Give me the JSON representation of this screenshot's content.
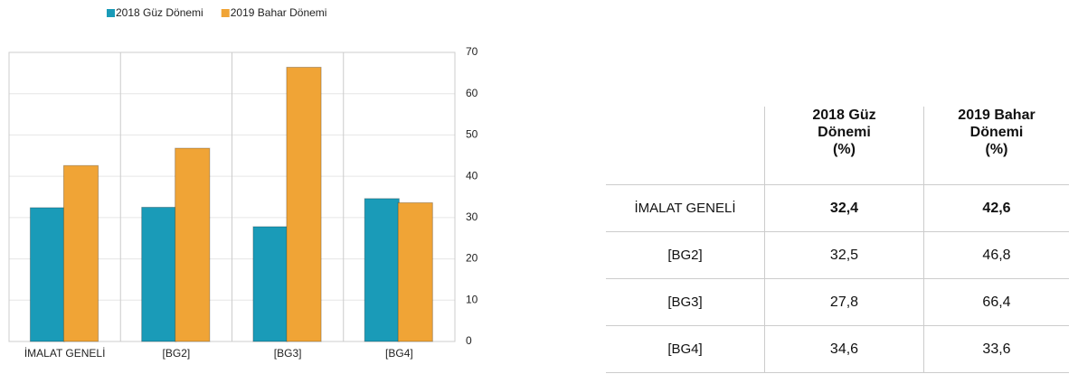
{
  "chart_data": {
    "type": "bar",
    "categories": [
      "İMALAT GENELİ",
      "[BG2]",
      "[BG3]",
      "[BG4]"
    ],
    "series": [
      {
        "name": "2018 Güz Dönemi",
        "color": "#1a9bb8",
        "values": [
          32.4,
          32.5,
          27.8,
          34.6
        ]
      },
      {
        "name": "2019 Bahar Dönemi",
        "color": "#f0a436",
        "values": [
          42.6,
          46.8,
          66.4,
          33.6
        ]
      }
    ],
    "ylim": [
      0,
      70
    ],
    "yticks": [
      0,
      10,
      20,
      30,
      40,
      50,
      60,
      70
    ],
    "grid": true,
    "legend": "top-left"
  },
  "table": {
    "columns": [
      {
        "label": "2018 Güz Dönemi",
        "unit": "(%)"
      },
      {
        "label": "2019 Bahar Dönemi",
        "unit": "(%)"
      }
    ],
    "rows": [
      [
        "İMALAT GENELİ",
        "32,4",
        "42,6"
      ],
      [
        "[BG2]",
        "32,5",
        "46,8"
      ],
      [
        "[BG3]",
        "27,8",
        "66,4"
      ],
      [
        "[BG4]",
        "34,6",
        "33,6"
      ]
    ]
  }
}
